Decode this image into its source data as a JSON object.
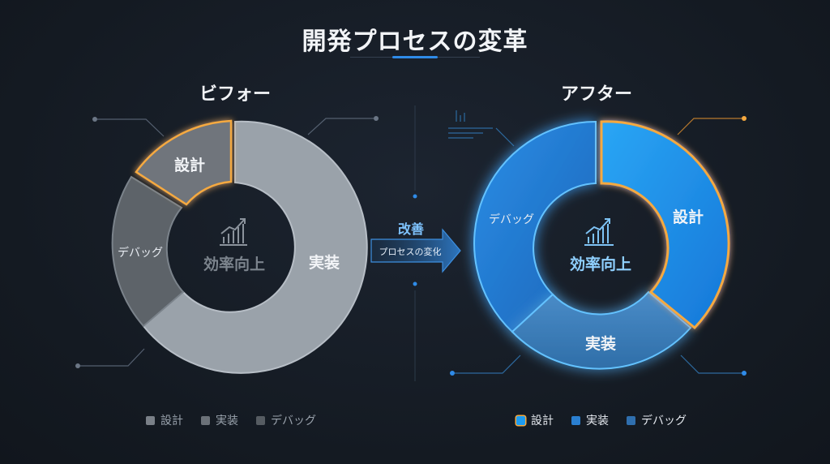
{
  "title": "開発プロセスの変革",
  "before": {
    "heading": "ビフォー",
    "segments": [
      "設計",
      "実装",
      "デバッグ"
    ],
    "center_label": "効率向上"
  },
  "after": {
    "heading": "アフター",
    "segments": [
      "設計",
      "実装",
      "デバッグ"
    ],
    "center_label": "効率向上"
  },
  "transition": {
    "top_label": "改善",
    "arrow_label": "プロセスの変化"
  },
  "legend_before": [
    "設計",
    "実装",
    "デバッグ"
  ],
  "legend_after": [
    "設計",
    "実装",
    "デバッグ"
  ],
  "colors": {
    "before_design": "#6f757c",
    "before_impl": "#9aa2aa",
    "before_debug": "#5d6369",
    "after_design": "#1d9cf0",
    "after_impl": "#3e82c2",
    "after_debug": "#2a86d8",
    "highlight": "#f5a940",
    "accent": "#2f8be8"
  }
}
